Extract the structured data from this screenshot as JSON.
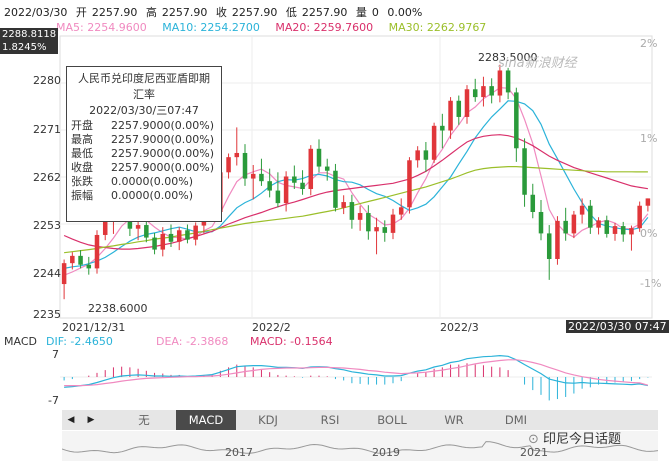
{
  "quote": {
    "date": "2022/03/30",
    "open_label": "开",
    "open": "2257.90",
    "high_label": "高",
    "high": "2257.90",
    "close_label": "收",
    "close": "2257.90",
    "low_label": "低",
    "low": "2257.90",
    "vol_label": "量",
    "vol": "0",
    "pct": "0.00%"
  },
  "ma": [
    {
      "label": "MA5: 2254.9600",
      "color": "#f08ac0"
    },
    {
      "label": "MA10: 2254.2700",
      "color": "#2bb3d9"
    },
    {
      "label": "MA20: 2259.7600",
      "color": "#d9306b"
    },
    {
      "label": "MA30: 2262.9767",
      "color": "#9bbf2a"
    }
  ],
  "price_box_top": "2288.8118",
  "price_box_pct": "1.8245%",
  "watermark": "sina新浪财经",
  "tooltip": {
    "title_line1": "人民币兑印度尼西亚盾即期",
    "title_line2": "汇率",
    "datetime": "2022/03/30/三07:47",
    "rows": [
      {
        "k": "开盘",
        "v": "2257.9000(0.00%)"
      },
      {
        "k": "最高",
        "v": "2257.9000(0.00%)"
      },
      {
        "k": "最低",
        "v": "2257.9000(0.00%)"
      },
      {
        "k": "收盘",
        "v": "2257.9000(0.00%)"
      },
      {
        "k": "张跌",
        "v": "0.0000(0.00%)"
      },
      {
        "k": "振幅",
        "v": "0.0000(0.00%)"
      }
    ]
  },
  "annotations": {
    "high": "2283.5000",
    "low": "2238.6000"
  },
  "x_labels": [
    "2021/12/31",
    "2022/2",
    "2022/3"
  ],
  "x_current": "2022/03/30 07:47",
  "macd_header": {
    "title": "MACD",
    "dif": "DIF: -2.4650",
    "dea": "DEA: -2.3868",
    "macd": "MACD: -0.1564"
  },
  "macd_axis": [
    "7",
    "-7"
  ],
  "tabs": [
    "无",
    "MACD",
    "KDJ",
    "RSI",
    "BOLL",
    "WR",
    "DMI"
  ],
  "active_tab": "MACD",
  "navigator_years": [
    "2017",
    "2019",
    "2021"
  ],
  "brand": "印尼今日话题",
  "chart_data": {
    "type": "candlestick",
    "title": "人民币兑印度尼西亚盾即期汇率",
    "y_ticks": [
      "2280",
      "2271",
      "2262",
      "2253",
      "2244",
      "2235"
    ],
    "y_right_ticks": [
      "2%",
      "1%",
      "0%",
      "-1%"
    ],
    "ylim": [
      2235,
      2289
    ],
    "candles": [
      [
        2241.5,
        2246.2,
        2238.6,
        2245.5
      ],
      [
        2245.5,
        2247.6,
        2244.3,
        2246.9
      ],
      [
        2246.9,
        2248.0,
        2244.5,
        2245.2
      ],
      [
        2245.2,
        2246.7,
        2243.3,
        2244.5
      ],
      [
        2244.5,
        2251.8,
        2243.5,
        2250.9
      ],
      [
        2250.9,
        2254.7,
        2249.9,
        2254.1
      ],
      [
        2254.1,
        2258.3,
        2251.1,
        2256.8
      ],
      [
        2256.8,
        2258.5,
        2254.6,
        2255.7
      ],
      [
        2255.7,
        2256.6,
        2250.7,
        2252.1
      ],
      [
        2252.1,
        2253.4,
        2249.9,
        2252.8
      ],
      [
        2252.8,
        2254.1,
        2249.5,
        2250.4
      ],
      [
        2250.4,
        2251.3,
        2247.2,
        2248.1
      ],
      [
        2248.1,
        2252.4,
        2246.8,
        2251.1
      ],
      [
        2251.1,
        2252.9,
        2248.6,
        2249.6
      ],
      [
        2249.6,
        2252.4,
        2248.0,
        2251.8
      ],
      [
        2251.8,
        2252.9,
        2249.3,
        2250.0
      ],
      [
        2250.0,
        2253.3,
        2248.9,
        2252.7
      ],
      [
        2252.7,
        2255.5,
        2251.2,
        2254.6
      ],
      [
        2254.6,
        2257.1,
        2253.5,
        2255.3
      ],
      [
        2255.3,
        2263.4,
        2254.0,
        2262.9
      ],
      [
        2262.9,
        2266.5,
        2261.7,
        2265.8
      ],
      [
        2265.8,
        2271.5,
        2264.2,
        2266.6
      ],
      [
        2266.6,
        2268.3,
        2260.3,
        2261.7
      ],
      [
        2261.7,
        2264.3,
        2257.7,
        2262.6
      ],
      [
        2262.6,
        2265.5,
        2260.3,
        2261.2
      ],
      [
        2261.2,
        2263.6,
        2258.1,
        2259.4
      ],
      [
        2259.4,
        2262.9,
        2256.2,
        2257.0
      ],
      [
        2257.0,
        2263.1,
        2255.4,
        2262.1
      ],
      [
        2262.1,
        2264.2,
        2259.7,
        2260.9
      ],
      [
        2260.9,
        2263.3,
        2258.6,
        2259.7
      ],
      [
        2259.7,
        2268.1,
        2258.5,
        2267.4
      ],
      [
        2267.4,
        2269.2,
        2262.9,
        2264.0
      ],
      [
        2264.0,
        2265.5,
        2261.3,
        2263.2
      ],
      [
        2263.2,
        2264.5,
        2255.4,
        2256.1
      ],
      [
        2256.1,
        2258.5,
        2254.9,
        2257.2
      ],
      [
        2257.2,
        2258.6,
        2252.1,
        2253.8
      ],
      [
        2253.8,
        2256.5,
        2251.7,
        2255.1
      ],
      [
        2255.1,
        2256.6,
        2250.0,
        2251.6
      ],
      [
        2251.6,
        2254.2,
        2247.2,
        2252.4
      ],
      [
        2252.4,
        2253.7,
        2249.6,
        2251.3
      ],
      [
        2251.3,
        2255.9,
        2250.1,
        2254.8
      ],
      [
        2254.8,
        2257.9,
        2253.8,
        2256.2
      ],
      [
        2256.2,
        2265.8,
        2255.0,
        2265.2
      ],
      [
        2265.2,
        2267.9,
        2263.8,
        2267.1
      ],
      [
        2267.1,
        2268.7,
        2263.0,
        2265.3
      ],
      [
        2265.3,
        2272.4,
        2264.7,
        2271.8
      ],
      [
        2271.8,
        2274.1,
        2267.5,
        2270.9
      ],
      [
        2270.9,
        2277.3,
        2269.3,
        2276.6
      ],
      [
        2276.6,
        2277.6,
        2272.0,
        2273.5
      ],
      [
        2273.5,
        2279.6,
        2272.2,
        2278.8
      ],
      [
        2278.8,
        2280.8,
        2276.4,
        2277.3
      ],
      [
        2277.3,
        2281.2,
        2275.5,
        2279.4
      ],
      [
        2279.4,
        2280.9,
        2276.1,
        2277.6
      ],
      [
        2277.6,
        2283.5,
        2276.3,
        2282.4
      ],
      [
        2282.4,
        2282.9,
        2276.9,
        2278.2
      ],
      [
        2278.2,
        2279.1,
        2264.9,
        2267.5
      ],
      [
        2267.5,
        2269.4,
        2256.3,
        2258.6
      ],
      [
        2258.6,
        2260.7,
        2254.1,
        2255.3
      ],
      [
        2255.3,
        2257.6,
        2249.9,
        2251.2
      ],
      [
        2251.2,
        2252.8,
        2242.3,
        2246.3
      ],
      [
        2246.3,
        2254.5,
        2245.2,
        2253.6
      ],
      [
        2253.6,
        2256.1,
        2249.8,
        2251.2
      ],
      [
        2251.2,
        2255.5,
        2250.3,
        2254.8
      ],
      [
        2254.8,
        2257.9,
        2253.1,
        2256.5
      ],
      [
        2256.5,
        2257.6,
        2251.1,
        2252.3
      ],
      [
        2252.3,
        2254.3,
        2251.0,
        2253.7
      ],
      [
        2253.7,
        2254.6,
        2250.4,
        2251.1
      ],
      [
        2251.1,
        2253.2,
        2249.8,
        2252.6
      ],
      [
        2252.6,
        2253.4,
        2249.6,
        2251.0
      ],
      [
        2251.0,
        2252.7,
        2247.9,
        2252.2
      ],
      [
        2252.2,
        2257.3,
        2251.5,
        2256.5
      ],
      [
        2256.5,
        2257.9,
        2255.4,
        2257.9
      ]
    ],
    "ma": {
      "MA5": [
        2243.2,
        2243.8,
        2244.6,
        2245.3,
        2246.6,
        2248.3,
        2250.3,
        2252.6,
        2254.0,
        2254.4,
        2253.7,
        2252.4,
        2251.3,
        2250.5,
        2250.4,
        2250.1,
        2250.6,
        2251.7,
        2252.5,
        2255.1,
        2258.3,
        2261.1,
        2262.4,
        2263.0,
        2263.5,
        2262.6,
        2261.0,
        2260.4,
        2260.1,
        2259.8,
        2261.4,
        2262.8,
        2262.8,
        2262.1,
        2261.6,
        2259.0,
        2256.8,
        2254.9,
        2253.9,
        2252.8,
        2253.0,
        2254.0,
        2256.0,
        2259.0,
        2261.7,
        2265.1,
        2267.3,
        2270.0,
        2272.0,
        2274.3,
        2275.4,
        2277.0,
        2278.0,
        2279.1,
        2279.0,
        2277.0,
        2273.0,
        2268.4,
        2262.2,
        2255.8,
        2253.0,
        2251.3,
        2250.5,
        2251.8,
        2252.5,
        2253.3,
        2253.7,
        2253.2,
        2252.1,
        2252.1,
        2253.0,
        2254.96
      ],
      "MA10": [
        2244.5,
        2244.8,
        2245.0,
        2245.4,
        2245.9,
        2246.6,
        2247.6,
        2248.7,
        2249.7,
        2250.5,
        2251.0,
        2251.3,
        2251.7,
        2252.1,
        2252.4,
        2252.0,
        2251.5,
        2251.5,
        2251.5,
        2252.6,
        2254.4,
        2256.1,
        2257.1,
        2257.8,
        2258.9,
        2260.2,
        2261.1,
        2261.5,
        2261.4,
        2261.7,
        2262.3,
        2262.5,
        2262.2,
        2261.5,
        2261.1,
        2261.0,
        2260.5,
        2259.6,
        2258.8,
        2258.3,
        2257.5,
        2256.5,
        2255.6,
        2256.1,
        2256.8,
        2258.2,
        2260.1,
        2262.0,
        2264.5,
        2266.9,
        2269.5,
        2271.6,
        2273.5,
        2275.0,
        2276.6,
        2276.5,
        2276.0,
        2274.7,
        2272.1,
        2268.3,
        2265.5,
        2262.6,
        2259.7,
        2257.1,
        2254.9,
        2253.1,
        2252.6,
        2252.3,
        2252.0,
        2251.9,
        2252.3,
        2254.27
      ],
      "MA20": [
        2250.8,
        2250.1,
        2249.5,
        2249.0,
        2248.7,
        2248.5,
        2248.3,
        2248.2,
        2248.2,
        2248.3,
        2248.5,
        2248.7,
        2249.0,
        2249.3,
        2249.7,
        2250.2,
        2250.6,
        2251.1,
        2251.6,
        2252.3,
        2253.0,
        2253.6,
        2254.2,
        2254.7,
        2255.2,
        2255.8,
        2256.3,
        2256.8,
        2257.2,
        2257.7,
        2258.2,
        2258.7,
        2259.1,
        2259.4,
        2259.6,
        2259.8,
        2260.0,
        2260.2,
        2260.4,
        2260.6,
        2260.8,
        2261.2,
        2261.6,
        2262.3,
        2263.1,
        2264.1,
        2265.2,
        2266.4,
        2267.6,
        2268.7,
        2269.4,
        2269.8,
        2270.0,
        2270.1,
        2269.9,
        2269.5,
        2268.8,
        2268.0,
        2267.0,
        2266.0,
        2265.2,
        2264.5,
        2263.8,
        2263.3,
        2262.8,
        2262.3,
        2261.8,
        2261.3,
        2260.8,
        2260.3,
        2260.0,
        2259.76
      ],
      "MA30": [
        2247.5,
        2247.7,
        2247.9,
        2248.1,
        2248.3,
        2248.6,
        2248.8,
        2249.1,
        2249.3,
        2249.6,
        2249.8,
        2250.1,
        2250.3,
        2250.5,
        2250.8,
        2251.0,
        2251.3,
        2251.6,
        2251.9,
        2252.2,
        2252.5,
        2252.8,
        2253.1,
        2253.3,
        2253.5,
        2253.7,
        2253.9,
        2254.1,
        2254.3,
        2254.5,
        2254.8,
        2255.1,
        2255.4,
        2255.7,
        2256.1,
        2256.5,
        2256.9,
        2257.3,
        2257.7,
        2258.1,
        2258.5,
        2258.9,
        2259.3,
        2259.7,
        2260.1,
        2260.6,
        2261.1,
        2261.6,
        2262.2,
        2262.8,
        2263.3,
        2263.6,
        2263.8,
        2263.9,
        2264.0,
        2264.0,
        2263.9,
        2263.8,
        2263.7,
        2263.6,
        2263.5,
        2263.4,
        2263.3,
        2263.2,
        2263.1,
        2263.1,
        2263.0,
        2263.0,
        2263.0,
        2263.0,
        2262.98,
        2262.9767
      ]
    },
    "macd": {
      "ylim": [
        -9,
        9
      ],
      "dif": [
        -3.0,
        -2.8,
        -2.5,
        -2.2,
        -1.6,
        -0.9,
        -0.2,
        0.3,
        0.5,
        0.6,
        0.5,
        0.3,
        0.3,
        0.2,
        0.3,
        0.2,
        0.3,
        0.5,
        0.7,
        1.4,
        2.2,
        3.0,
        3.2,
        3.3,
        3.3,
        3.1,
        2.8,
        2.8,
        2.7,
        2.5,
        2.9,
        3.0,
        2.9,
        2.4,
        2.1,
        1.5,
        1.2,
        0.8,
        0.6,
        0.3,
        0.3,
        0.4,
        1.1,
        1.7,
        2.1,
        2.9,
        3.4,
        4.2,
        4.6,
        5.3,
        5.6,
        5.9,
        6.0,
        6.2,
        6.0,
        5.0,
        3.6,
        2.3,
        1.0,
        -0.6,
        -1.2,
        -1.7,
        -1.8,
        -1.6,
        -1.8,
        -1.8,
        -1.9,
        -2.0,
        -2.1,
        -2.2,
        -2.0,
        -2.465
      ],
      "dea": [
        -2.5,
        -2.5,
        -2.5,
        -2.4,
        -2.2,
        -1.9,
        -1.6,
        -1.2,
        -0.9,
        -0.6,
        -0.4,
        -0.3,
        -0.2,
        -0.1,
        0.0,
        0.1,
        0.1,
        0.2,
        0.3,
        0.5,
        0.8,
        1.2,
        1.6,
        1.9,
        2.2,
        2.4,
        2.5,
        2.6,
        2.6,
        2.6,
        2.7,
        2.8,
        2.8,
        2.7,
        2.6,
        2.4,
        2.2,
        1.9,
        1.7,
        1.4,
        1.2,
        1.0,
        1.1,
        1.2,
        1.4,
        1.7,
        2.0,
        2.4,
        2.8,
        3.3,
        3.8,
        4.2,
        4.5,
        4.8,
        5.0,
        5.0,
        4.7,
        4.2,
        3.6,
        2.8,
        2.0,
        1.2,
        0.6,
        0.1,
        -0.3,
        -0.7,
        -1.0,
        -1.2,
        -1.4,
        -1.6,
        -1.7,
        -2.3868
      ],
      "hist": [
        -1.0,
        -0.6,
        0.0,
        0.4,
        1.2,
        2.0,
        2.8,
        3.0,
        2.8,
        2.4,
        1.8,
        1.2,
        1.0,
        0.6,
        0.6,
        0.2,
        0.4,
        0.6,
        0.8,
        1.8,
        2.8,
        3.6,
        3.2,
        2.8,
        2.2,
        1.4,
        0.6,
        0.4,
        0.2,
        -0.2,
        0.4,
        0.4,
        0.2,
        -0.6,
        -1.0,
        -1.8,
        -2.0,
        -2.2,
        -2.2,
        -2.2,
        -1.8,
        -1.2,
        0.0,
        1.0,
        1.4,
        2.4,
        2.8,
        3.6,
        3.6,
        4.0,
        3.6,
        3.4,
        3.0,
        2.8,
        2.0,
        0.0,
        -2.2,
        -3.8,
        -5.2,
        -6.8,
        -6.4,
        -5.8,
        -4.8,
        -3.4,
        -3.0,
        -2.2,
        -1.8,
        -1.6,
        -1.4,
        -1.2,
        -0.6,
        -0.1564
      ]
    }
  }
}
